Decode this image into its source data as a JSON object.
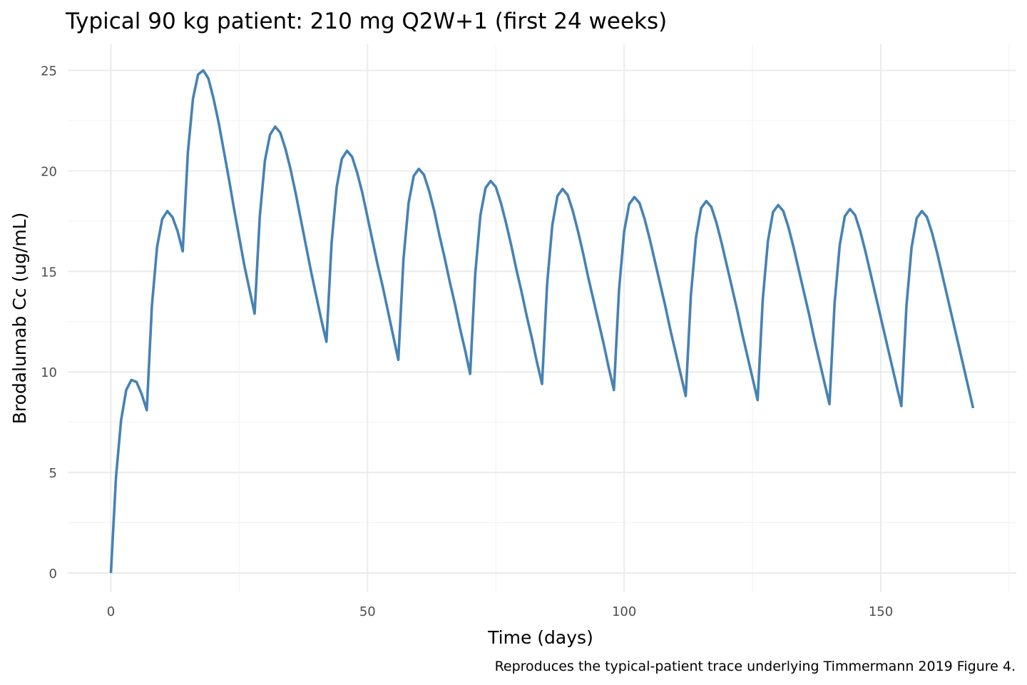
{
  "chart_data": {
    "type": "line",
    "title": "Typical 90 kg patient: 210 mg Q2W+1 (first 24 weeks)",
    "xlabel": "Time (days)",
    "ylabel": "Brodalumab Cc (ug/mL)",
    "caption": "Reproduces the typical-patient trace underlying Timmermann 2019 Figure 4.",
    "xlim": [
      -8.4,
      176.4
    ],
    "ylim": [
      -0.96,
      26.3
    ],
    "x_major_ticks": [
      0,
      50,
      100,
      150
    ],
    "x_minor_ticks": [
      25,
      75,
      125,
      175
    ],
    "y_major_ticks": [
      0,
      5,
      10,
      15,
      20,
      25
    ],
    "y_minor_ticks": [
      2.5,
      7.5,
      12.5,
      17.5,
      22.5
    ],
    "x_tick_labels": [
      "0",
      "50",
      "100",
      "150"
    ],
    "y_tick_labels": [
      "0",
      "5",
      "10",
      "15",
      "20",
      "25"
    ],
    "grid": true,
    "line_color": "#4682B4",
    "x": [
      0,
      1,
      2,
      3,
      4,
      5,
      6,
      7,
      8,
      9,
      10,
      11,
      12,
      13,
      14,
      15,
      16,
      17,
      18,
      19,
      20,
      21,
      22,
      23,
      24,
      25,
      26,
      27,
      28,
      29,
      30,
      31,
      32,
      33,
      34,
      35,
      36,
      37,
      38,
      39,
      40,
      41,
      42,
      43,
      44,
      45,
      46,
      47,
      48,
      49,
      50,
      51,
      52,
      53,
      54,
      55,
      56,
      57,
      58,
      59,
      60,
      61,
      62,
      63,
      64,
      65,
      66,
      67,
      68,
      69,
      70,
      71,
      72,
      73,
      74,
      75,
      76,
      77,
      78,
      79,
      80,
      81,
      82,
      83,
      84,
      85,
      86,
      87,
      88,
      89,
      90,
      91,
      92,
      93,
      94,
      95,
      96,
      97,
      98,
      99,
      100,
      101,
      102,
      103,
      104,
      105,
      106,
      107,
      108,
      109,
      110,
      111,
      112,
      113,
      114,
      115,
      116,
      117,
      118,
      119,
      120,
      121,
      122,
      123,
      124,
      125,
      126,
      127,
      128,
      129,
      130,
      131,
      132,
      133,
      134,
      135,
      136,
      137,
      138,
      139,
      140,
      141,
      142,
      143,
      144,
      145,
      146,
      147,
      148,
      149,
      150,
      151,
      152,
      153,
      154,
      155,
      156,
      157,
      158,
      159,
      160,
      161,
      162,
      163,
      164,
      165,
      166,
      167,
      168
    ],
    "y": [
      0,
      4.8,
      7.6,
      9.1,
      9.6,
      9.5,
      8.9,
      8.1,
      13.3,
      16.2,
      17.6,
      18.0,
      17.7,
      17.0,
      16.0,
      20.9,
      23.6,
      24.8,
      25.0,
      24.6,
      23.6,
      22.4,
      21.0,
      19.6,
      18.1,
      16.7,
      15.3,
      14.1,
      12.9,
      17.7,
      20.5,
      21.8,
      22.2,
      21.9,
      21.1,
      20.1,
      18.9,
      17.6,
      16.3,
      15.0,
      13.8,
      12.6,
      11.5,
      16.4,
      19.2,
      20.6,
      21.0,
      20.7,
      19.9,
      18.9,
      17.7,
      16.5,
      15.3,
      14.2,
      13.0,
      11.8,
      10.6,
      15.6,
      18.4,
      19.75,
      20.1,
      19.8,
      19.0,
      18.0,
      16.8,
      15.7,
      14.5,
      13.4,
      12.2,
      11.1,
      9.9,
      14.9,
      17.8,
      19.15,
      19.5,
      19.2,
      18.4,
      17.4,
      16.3,
      15.1,
      14.0,
      12.8,
      11.7,
      10.5,
      9.4,
      14.4,
      17.3,
      18.75,
      19.1,
      18.8,
      18.0,
      17.0,
      15.9,
      14.7,
      13.6,
      12.5,
      11.4,
      10.2,
      9.1,
      14.1,
      17.0,
      18.35,
      18.7,
      18.4,
      17.6,
      16.6,
      15.5,
      14.4,
      13.3,
      12.1,
      11.0,
      9.9,
      8.8,
      13.8,
      16.7,
      18.15,
      18.5,
      18.2,
      17.4,
      16.4,
      15.3,
      14.2,
      13.1,
      11.9,
      10.8,
      9.7,
      8.6,
      13.6,
      16.5,
      17.95,
      18.3,
      18.0,
      17.2,
      16.2,
      15.1,
      14.0,
      12.9,
      11.7,
      10.6,
      9.5,
      8.4,
      13.4,
      16.3,
      17.75,
      18.1,
      17.8,
      17.0,
      16.0,
      14.9,
      13.8,
      12.7,
      11.6,
      10.5,
      9.4,
      8.3,
      13.3,
      16.2,
      17.65,
      18.0,
      17.7,
      16.9,
      15.9,
      14.8,
      13.7,
      12.6,
      11.5,
      10.4,
      9.3,
      8.2
    ]
  }
}
